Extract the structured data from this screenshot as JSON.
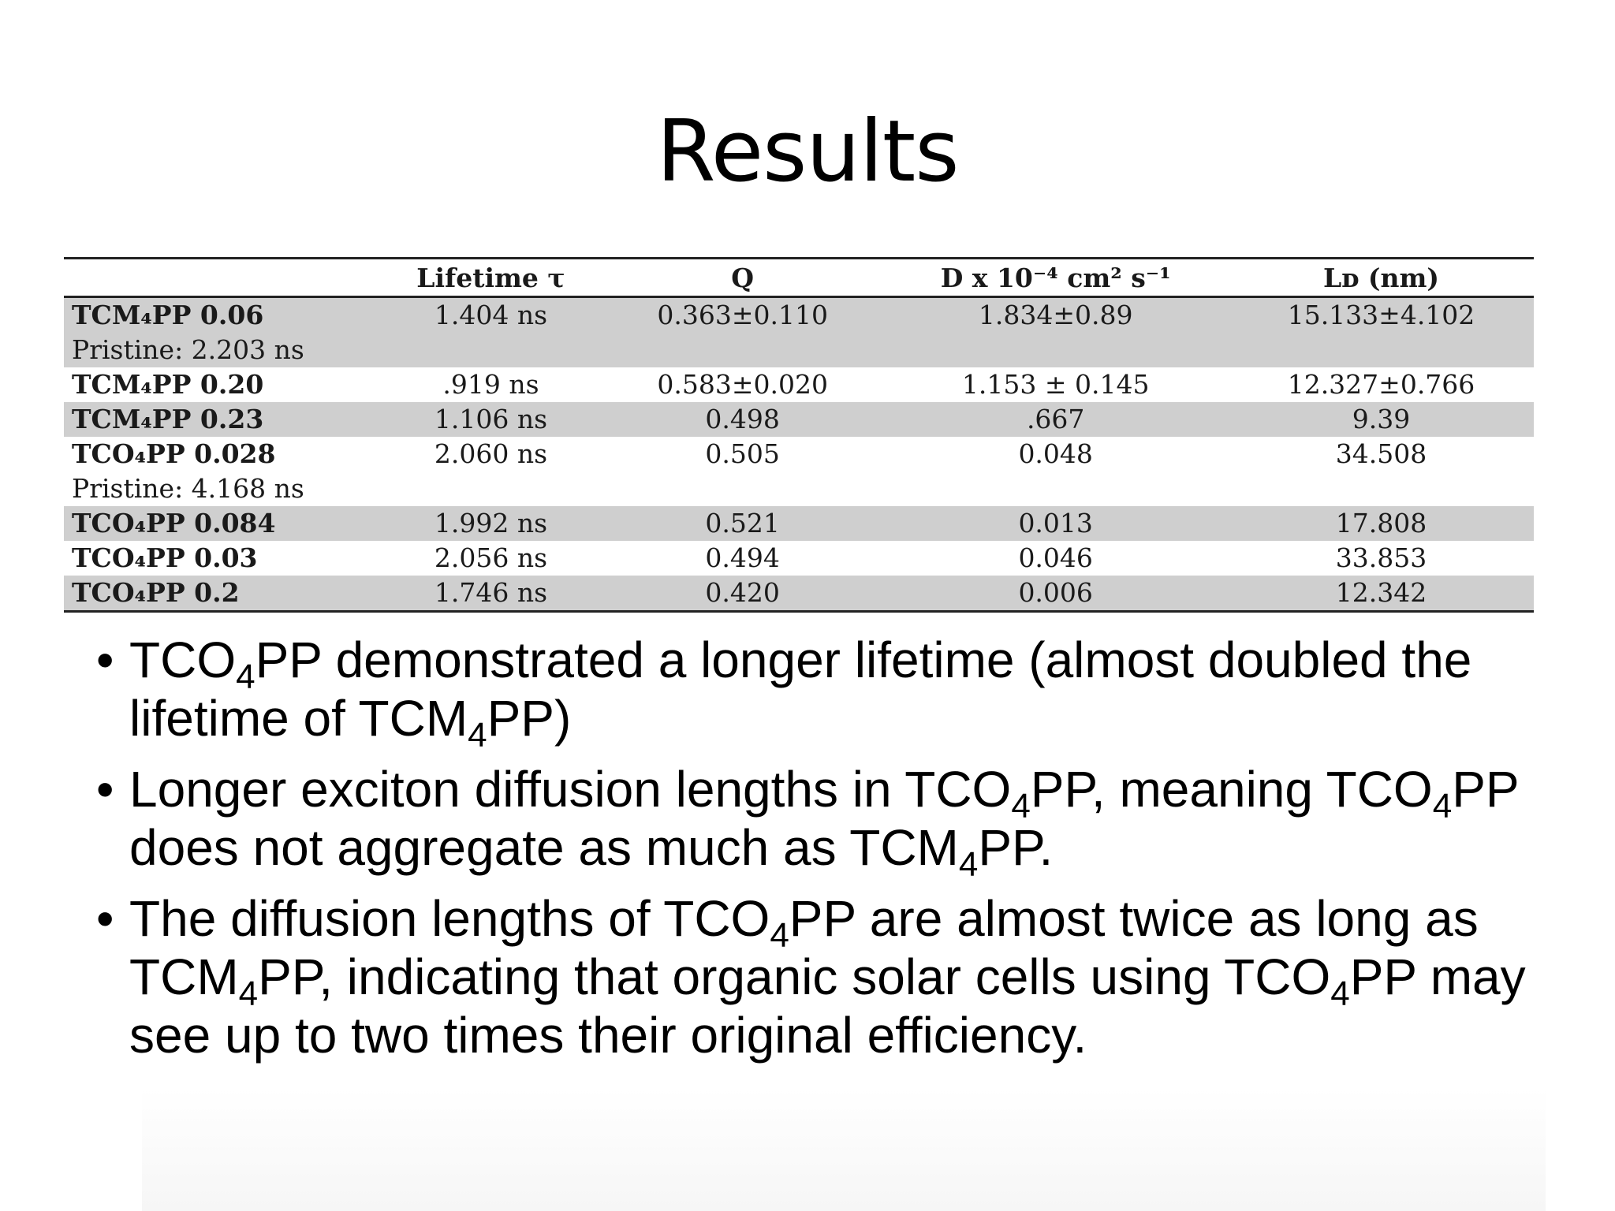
{
  "slide": {
    "title": "Results"
  },
  "table": {
    "headers": [
      "",
      "Lifetime τ",
      "Q",
      "D x 10⁻⁴ cm² s⁻¹",
      "Lᴅ (nm)"
    ],
    "rows": [
      {
        "name": "TCM₄PP 0.06",
        "sub": "Pristine: 2.203 ns",
        "lifetime": "1.404 ns",
        "q": "0.363±0.110",
        "d": "1.834±0.89",
        "ld": "15.133±4.102"
      },
      {
        "name": "TCM₄PP 0.20",
        "sub": "",
        "lifetime": ".919 ns",
        "q": "0.583±0.020",
        "d": "1.153 ± 0.145",
        "ld": "12.327±0.766"
      },
      {
        "name": "TCM₄PP 0.23",
        "sub": "",
        "lifetime": "1.106 ns",
        "q": "0.498",
        "d": ".667",
        "ld": "9.39"
      },
      {
        "name": "TCO₄PP 0.028",
        "sub": "Pristine: 4.168 ns",
        "lifetime": "2.060 ns",
        "q": "0.505",
        "d": "0.048",
        "ld": "34.508"
      },
      {
        "name": "TCO₄PP 0.084",
        "sub": "",
        "lifetime": "1.992 ns",
        "q": "0.521",
        "d": "0.013",
        "ld": "17.808"
      },
      {
        "name": "TCO₄PP 0.03",
        "sub": "",
        "lifetime": "2.056 ns",
        "q": "0.494",
        "d": "0.046",
        "ld": "33.853"
      },
      {
        "name": "TCO₄PP 0.2",
        "sub": "",
        "lifetime": "1.746 ns",
        "q": "0.420",
        "d": "0.006",
        "ld": "12.342"
      }
    ]
  },
  "bullets": {
    "marker": "•",
    "sub4": "4",
    "b1": {
      "t1": "TCO",
      "t2": "PP demonstrated a longer lifetime (almost doubled the lifetime of TCM",
      "t3": "PP)"
    },
    "b2": {
      "t1": "Longer exciton diffusion lengths in TCO",
      "t2": "PP, meaning TCO",
      "t3": "PP does not aggregate as much as TCM",
      "t4": "PP."
    },
    "b3": {
      "t1": "The diffusion lengths of TCO",
      "t2": "PP are almost twice as long as TCM",
      "t3": "PP, indicating that organic solar cells using TCO",
      "t4": "PP may see up to two times their original efficiency."
    }
  }
}
